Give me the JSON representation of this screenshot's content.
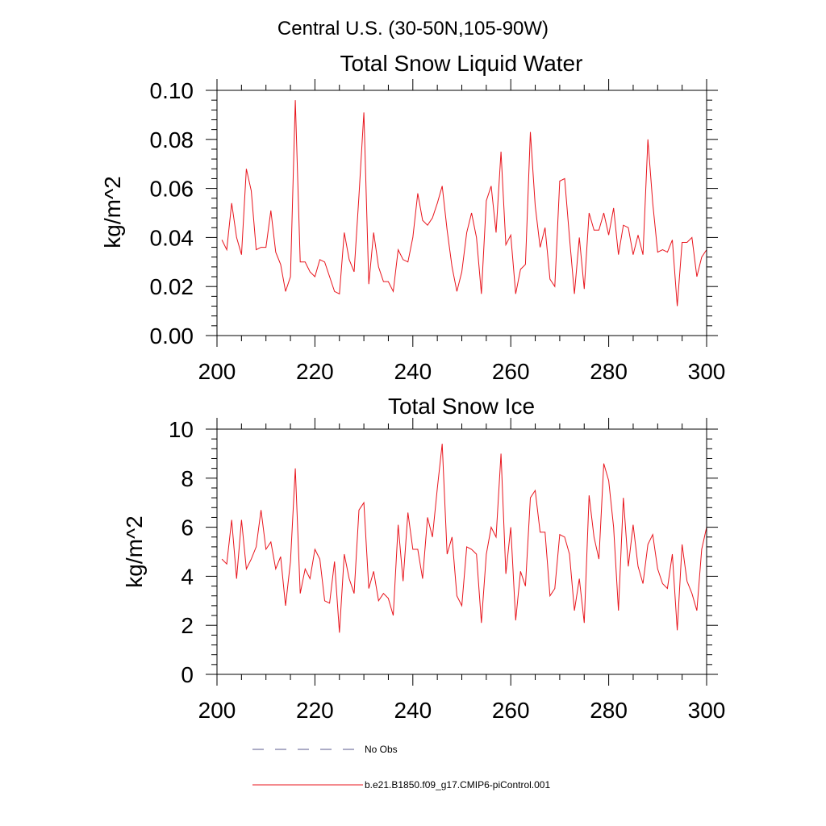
{
  "figure": {
    "suptitle": "Central U.S. (30-50N,105-90W)",
    "series_color": "#e8141c",
    "obs_color": "#5a5a8c"
  },
  "legend": {
    "entries": [
      {
        "label": "No Obs",
        "style": "dashed",
        "color": "#5a5a8c"
      },
      {
        "label": "b.e21.B1850.f09_g17.CMIP6-piControl.001",
        "style": "solid",
        "color": "#e8141c"
      }
    ]
  },
  "chart_data": [
    {
      "type": "line",
      "title": "Total Snow Liquid Water",
      "xlabel": "",
      "ylabel": "kg/m^2",
      "xlim": [
        200,
        300
      ],
      "ylim": [
        0,
        0.1
      ],
      "xticks": [
        "200",
        "220",
        "240",
        "260",
        "280",
        "300"
      ],
      "yticks": [
        "0.00",
        "0.02",
        "0.04",
        "0.06",
        "0.08",
        "0.10"
      ],
      "x_start": 201,
      "series": [
        {
          "name": "b.e21.B1850.f09_g17.CMIP6-piControl.001",
          "values": [
            0.039,
            0.035,
            0.054,
            0.04,
            0.033,
            0.068,
            0.059,
            0.035,
            0.036,
            0.036,
            0.051,
            0.034,
            0.029,
            0.018,
            0.024,
            0.096,
            0.03,
            0.03,
            0.026,
            0.024,
            0.031,
            0.03,
            0.024,
            0.018,
            0.017,
            0.042,
            0.031,
            0.026,
            0.057,
            0.091,
            0.021,
            0.042,
            0.028,
            0.022,
            0.022,
            0.018,
            0.035,
            0.031,
            0.03,
            0.04,
            0.058,
            0.047,
            0.045,
            0.048,
            0.054,
            0.061,
            0.043,
            0.028,
            0.018,
            0.026,
            0.042,
            0.05,
            0.04,
            0.017,
            0.055,
            0.061,
            0.042,
            0.075,
            0.037,
            0.041,
            0.017,
            0.027,
            0.029,
            0.083,
            0.053,
            0.036,
            0.044,
            0.023,
            0.02,
            0.063,
            0.064,
            0.04,
            0.017,
            0.04,
            0.019,
            0.05,
            0.043,
            0.043,
            0.05,
            0.041,
            0.052,
            0.033,
            0.045,
            0.044,
            0.033,
            0.041,
            0.033,
            0.08,
            0.054,
            0.034,
            0.035,
            0.034,
            0.039,
            0.012,
            0.038,
            0.038,
            0.04,
            0.024,
            0.032,
            0.035
          ]
        }
      ]
    },
    {
      "type": "line",
      "title": "Total Snow Ice",
      "xlabel": "",
      "ylabel": "kg/m^2",
      "xlim": [
        200,
        300
      ],
      "ylim": [
        0,
        10
      ],
      "xticks": [
        "200",
        "220",
        "240",
        "260",
        "280",
        "300"
      ],
      "yticks": [
        "0",
        "2",
        "4",
        "6",
        "8",
        "10"
      ],
      "x_start": 201,
      "series": [
        {
          "name": "b.e21.B1850.f09_g17.CMIP6-piControl.001",
          "values": [
            4.7,
            4.5,
            6.3,
            3.9,
            6.3,
            4.3,
            4.7,
            5.2,
            6.7,
            5.1,
            5.4,
            4.3,
            4.8,
            2.8,
            4.6,
            8.4,
            3.3,
            4.3,
            3.9,
            5.1,
            4.7,
            3.0,
            2.9,
            4.6,
            1.7,
            4.9,
            3.9,
            3.3,
            6.7,
            7.0,
            3.5,
            4.2,
            3.0,
            3.3,
            3.1,
            2.4,
            6.1,
            3.8,
            6.6,
            5.1,
            5.1,
            3.9,
            6.4,
            5.6,
            7.6,
            9.4,
            4.9,
            5.6,
            3.2,
            2.8,
            5.2,
            5.1,
            4.9,
            2.1,
            4.9,
            6.0,
            5.6,
            9.0,
            4.1,
            6.0,
            2.2,
            4.2,
            3.6,
            7.2,
            7.5,
            5.8,
            5.8,
            3.2,
            3.5,
            5.7,
            5.6,
            4.9,
            2.6,
            3.9,
            2.1,
            7.3,
            5.6,
            4.7,
            8.6,
            7.9,
            6.0,
            2.6,
            7.2,
            4.4,
            6.1,
            4.4,
            3.7,
            5.3,
            5.7,
            4.3,
            3.7,
            3.5,
            4.9,
            1.8,
            5.3,
            3.8,
            3.3,
            2.6,
            5.1,
            6.0
          ]
        }
      ]
    }
  ]
}
